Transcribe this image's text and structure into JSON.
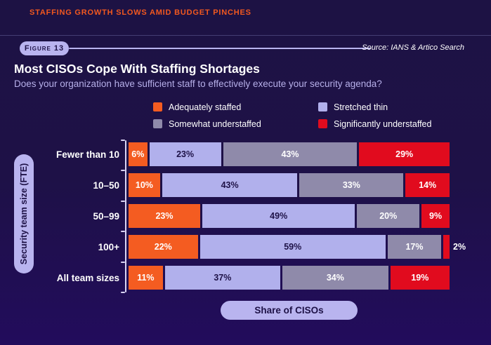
{
  "banner": {
    "title": "STAFFING GROWTH SLOWS AMID BUDGET PINCHES"
  },
  "figure": {
    "label": "Figure 13",
    "source": "Source: IANS & Artico Search"
  },
  "header": {
    "title": "Most CISOs Cope With Staffing Shortages",
    "subtitle": "Does your organization have sufficient staff to effectively execute your security agenda?"
  },
  "colors": {
    "background_top": "#1d1244",
    "background_bottom": "#220c5c",
    "banner_accent": "#f2581f",
    "pill_lavender": "#b9b4ef",
    "dark_text": "#1e1247",
    "axis_line": "#d9d4f4"
  },
  "chart_data": {
    "type": "bar",
    "orientation": "horizontal",
    "stacked": true,
    "unit": "%",
    "title": "Most CISOs Cope With Staffing Shortages",
    "ylabel": "Security team size (FTE)",
    "xlabel": "Share of CISOs",
    "legend_position": "top",
    "grid": false,
    "xlim": [
      0,
      100
    ],
    "categories": [
      "Fewer than 10",
      "10–50",
      "50–99",
      "100+",
      "All team sizes"
    ],
    "series": [
      {
        "name": "Adequately staffed",
        "color": "#f45c21",
        "label_color": "#ffffff",
        "values": [
          6,
          10,
          23,
          22,
          11
        ]
      },
      {
        "name": "Stretched thin",
        "color": "#b1b0ec",
        "label_color": "#1e1247",
        "values": [
          23,
          43,
          49,
          59,
          37
        ]
      },
      {
        "name": "Somewhat understaffed",
        "color": "#8f8aaa",
        "label_color": "#ffffff",
        "values": [
          43,
          33,
          20,
          17,
          34
        ]
      },
      {
        "name": "Significantly understaffed",
        "color": "#e10b1e",
        "label_color": "#ffffff",
        "values": [
          29,
          14,
          9,
          2,
          19
        ]
      }
    ]
  }
}
